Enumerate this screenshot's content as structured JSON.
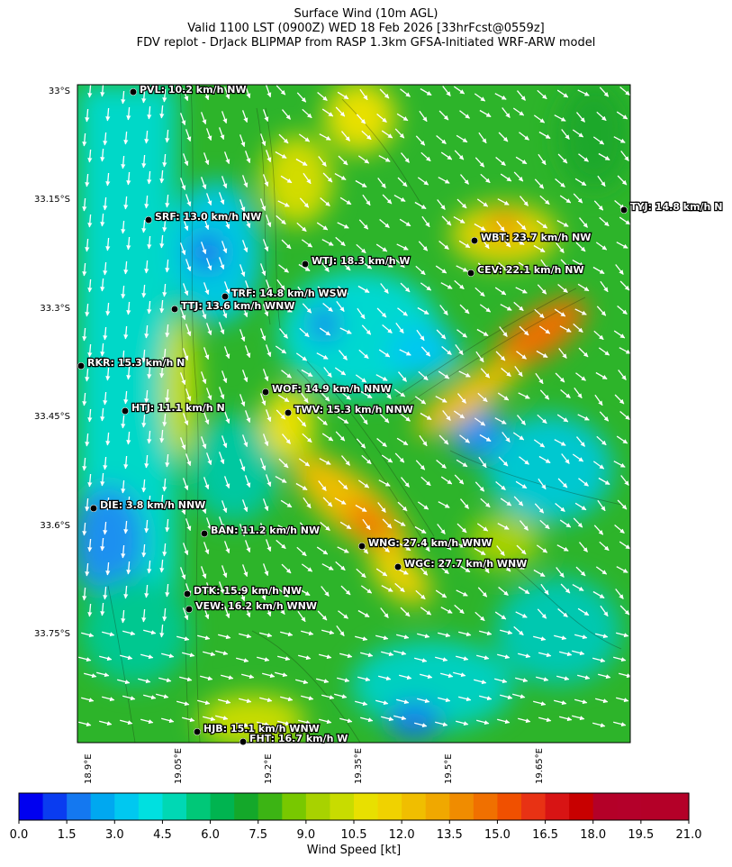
{
  "title_lines": [
    "Surface Wind (10m AGL)",
    "Valid 1100 LST (0900Z) WED 18 Feb 2026 [33hrFcst@0559z]",
    "FDV replot - DrJack BLIPMAP from RASP 1.3km GFSA-Initiated WRF-ARW model"
  ],
  "lat_ticks": [
    "33°S",
    "33.15°S",
    "33.3°S",
    "33.45°S",
    "33.6°S",
    "33.75°S"
  ],
  "lon_ticks": [
    "18.9°E",
    "19.05°E",
    "19.2°E",
    "19.35°E",
    "19.5°E",
    "19.65°E"
  ],
  "colorbar": {
    "label": "Wind Speed [kt]",
    "ticks": [
      "0.0",
      "1.5",
      "3.0",
      "4.5",
      "6.0",
      "7.5",
      "9.0",
      "10.5",
      "12.0",
      "13.5",
      "15.0",
      "16.5",
      "18.0",
      "19.5",
      "21.0"
    ],
    "colors": [
      "#0000f0",
      "#0a3cf0",
      "#1478f0",
      "#00a8f0",
      "#00c8f0",
      "#00e0e0",
      "#00d8b4",
      "#00c878",
      "#00b450",
      "#14a82a",
      "#3cb414",
      "#78c800",
      "#a8d200",
      "#c8dc00",
      "#e8e000",
      "#f0d200",
      "#f0be00",
      "#f0a800",
      "#f08c00",
      "#f07000",
      "#f05000",
      "#e83214",
      "#d81414",
      "#c80000",
      "#b40028",
      "#b4002a",
      "#b40028",
      "#b40028"
    ]
  },
  "stations": [
    {
      "label": "PVL: 10.2 km/h NW"
    },
    {
      "label": "TYJ: 14.8 km/h N"
    },
    {
      "label": "SRF: 13.0 km/h NW"
    },
    {
      "label": "WBT: 23.7 km/h NW"
    },
    {
      "label": "WTJ: 18.3 km/h W"
    },
    {
      "label": "CEV: 22.1 km/h NW"
    },
    {
      "label": "TRF: 14.8 km/h WSW"
    },
    {
      "label": "TTJ: 13.6 km/h WNW"
    },
    {
      "label": "RKR: 15.3 km/h N"
    },
    {
      "label": "WOF: 14.9 km/h NNW"
    },
    {
      "label": "HTJ: 11.1 km/h N"
    },
    {
      "label": "TWV: 15.3 km/h NNW"
    },
    {
      "label": "DIE: 3.8 km/h NNW"
    },
    {
      "label": "BAN: 11.2 km/h NW"
    },
    {
      "label": "WNG: 27.4 km/h WNW"
    },
    {
      "label": "WGC: 27.7 km/h WNW"
    },
    {
      "label": "DTK: 15.9 km/h NW"
    },
    {
      "label": "VEW: 16.2 km/h WNW"
    },
    {
      "label": "HJB: 15.1 km/h WNW"
    },
    {
      "label": "FHT: 16.7 km/h W"
    }
  ]
}
